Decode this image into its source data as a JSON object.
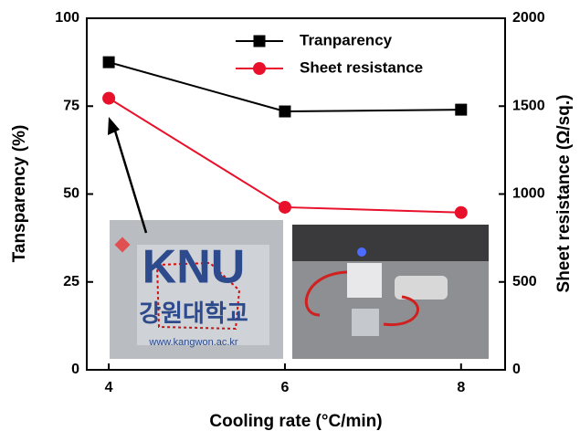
{
  "chart_data": {
    "type": "line",
    "x": [
      4,
      6,
      8
    ],
    "xlim": [
      3.75,
      8.5
    ],
    "xticks": [
      4,
      6,
      8
    ],
    "ylim": [
      0,
      100
    ],
    "yticks": [
      0,
      25,
      50,
      75,
      100
    ],
    "y2lim": [
      0,
      2000
    ],
    "y2ticks": [
      0,
      500,
      1000,
      1500,
      2000
    ],
    "xlabel": "Cooling rate (°C/min)",
    "ylabel": "Tansparency (%)",
    "y2label": "Sheet resistance (Ω/sq.)",
    "legend": "upper right",
    "series": [
      {
        "name": "Tranparency",
        "color": "#000000",
        "marker": "square",
        "values": [
          87.5,
          73.5,
          74
        ]
      },
      {
        "name": "Sheet resistance",
        "color": "#e8102a",
        "marker": "circle",
        "axis": "y2",
        "values": [
          1545,
          925,
          895
        ]
      }
    ],
    "inset_text": [
      "KNU",
      "강원대학교",
      "www.kangwon.ac.kr"
    ]
  }
}
